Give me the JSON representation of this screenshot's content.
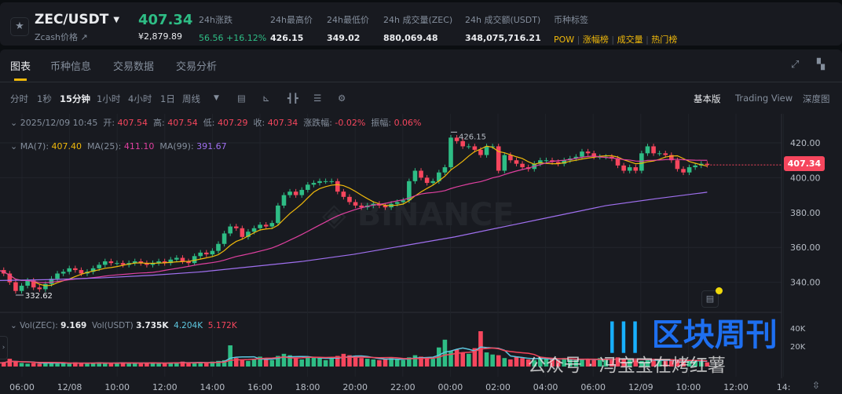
{
  "header": {
    "symbol": "ZEC/USDT",
    "subtitle": "Zcash价格 ↗",
    "last_price": "407.34",
    "fiat_price": "¥2,879.89",
    "stats": [
      {
        "label": "24h涨跌",
        "value": "56.56 +16.12%",
        "color": "#2ebd85"
      },
      {
        "label": "24h最高价",
        "value": "426.15",
        "color": "#eaecef"
      },
      {
        "label": "24h最低价",
        "value": "349.02",
        "color": "#eaecef"
      },
      {
        "label": "24h 成交量(ZEC)",
        "value": "880,069.48",
        "color": "#eaecef"
      },
      {
        "label": "24h 成交额(USDT)",
        "value": "348,075,716.21",
        "color": "#eaecef"
      }
    ],
    "tags_label": "币种标签",
    "tags": [
      "POW",
      "涨幅榜",
      "成交量",
      "热门榜"
    ]
  },
  "tabs": [
    "图表",
    "币种信息",
    "交易数据",
    "交易分析"
  ],
  "toolbar": {
    "intervals": [
      "分时",
      "1秒",
      "15分钟",
      "1小时",
      "4小时",
      "1日",
      "周线"
    ],
    "active": "15分钟",
    "views": [
      "基本版",
      "Trading View",
      "深度图"
    ]
  },
  "ohlc_info": {
    "time": "2025/12/09 10:45",
    "open_label": "开:",
    "open": "407.54",
    "high_label": "高:",
    "high": "407.54",
    "low_label": "低:",
    "low": "407.29",
    "close_label": "收:",
    "close": "407.34",
    "chg_label": "涨跌幅:",
    "chg": "-0.02%",
    "amp_label": "振幅:",
    "amp": "0.06%"
  },
  "ma_info": {
    "ma7_label": "MA(7):",
    "ma7": "407.40",
    "ma25_label": "MA(25):",
    "ma25": "411.10",
    "ma99_label": "MA(99):",
    "ma99": "391.67"
  },
  "vol_info": {
    "vol_zec_label": "Vol(ZEC):",
    "vol_zec": "9.169",
    "vol_usdt_label": "Vol(USDT)",
    "vol_usdt": "3.735K",
    "ma1": "4.204K",
    "ma2": "5.172K"
  },
  "watermark": {
    "brand": "区块周刊",
    "account": "公众号 · 冯宝宝在烤红薯"
  },
  "colors": {
    "up": "#2ebd85",
    "down": "#f6465d",
    "ma7": "#f0b90b",
    "ma25": "#e040a0",
    "ma99": "#a070f0",
    "vol_ma1": "#5ec8e0",
    "vol_ma2": "#f6465d"
  },
  "chart_data": {
    "type": "candlestick",
    "y_ticks": [
      "420.00",
      "400.00",
      "380.00",
      "360.00",
      "340.00"
    ],
    "ylim": [
      330,
      430
    ],
    "vol_ticks": [
      "40K",
      "20K"
    ],
    "x_ticks": [
      "06:00",
      "12/08",
      "10:00",
      "12:00",
      "14:00",
      "16:00",
      "18:00",
      "20:00",
      "22:00",
      "00:00",
      "02:00",
      "04:00",
      "06:00",
      "12/09",
      "10:00",
      "12:00",
      "14:"
    ],
    "current_price": "407.34",
    "high_marker": "426.15",
    "low_marker": "332.62",
    "first_open": 349,
    "close": [
      347,
      345,
      340,
      335,
      338,
      341,
      337,
      336,
      339,
      342,
      345,
      346,
      348,
      347,
      345,
      346,
      348,
      350,
      352,
      351,
      351,
      350,
      351,
      352,
      351,
      350,
      351,
      352,
      351,
      353,
      354,
      352,
      351,
      355,
      357,
      356,
      358,
      362,
      368,
      372,
      371,
      366,
      369,
      371,
      373,
      372,
      374,
      384,
      390,
      392,
      390,
      393,
      396,
      397,
      398,
      398,
      398,
      392,
      389,
      386,
      384,
      383,
      384,
      385,
      384,
      383,
      385,
      386,
      387,
      398,
      404,
      400,
      397,
      398,
      403,
      406,
      423,
      421,
      418,
      418,
      416,
      413,
      418,
      418,
      404,
      413,
      410,
      408,
      406,
      405,
      408,
      410,
      410,
      409,
      408,
      410,
      411,
      412,
      415,
      414,
      412,
      412,
      412,
      411,
      407,
      404,
      406,
      404,
      414,
      418,
      414,
      414,
      413,
      410,
      405,
      403,
      406,
      407,
      408,
      407.34
    ],
    "volume_k": [
      5,
      6,
      11,
      7,
      5,
      4,
      5,
      4,
      6,
      5,
      4,
      5,
      4,
      6,
      5,
      4,
      5,
      6,
      5,
      4,
      5,
      6,
      5,
      5,
      4,
      5,
      6,
      5,
      4,
      5,
      6,
      7,
      5,
      5,
      6,
      5,
      7,
      8,
      9,
      30,
      12,
      9,
      8,
      10,
      14,
      11,
      9,
      15,
      18,
      16,
      12,
      10,
      14,
      13,
      12,
      9,
      11,
      15,
      18,
      16,
      14,
      12,
      11,
      10,
      9,
      11,
      12,
      10,
      9,
      13,
      16,
      14,
      12,
      11,
      27,
      38,
      22,
      24,
      20,
      18,
      26,
      50,
      20,
      17,
      16,
      12,
      10,
      14,
      12,
      10,
      9,
      13,
      11,
      10,
      9,
      12,
      10,
      9,
      11,
      10,
      9,
      12,
      10,
      9,
      13,
      11,
      10,
      9,
      8,
      10,
      9,
      8,
      10,
      9,
      8,
      7,
      8,
      9,
      7,
      6
    ],
    "ma99": [
      341,
      341.5,
      342.5,
      344,
      346,
      349,
      352,
      356,
      361,
      366,
      372,
      378,
      384,
      388,
      391.67
    ]
  }
}
